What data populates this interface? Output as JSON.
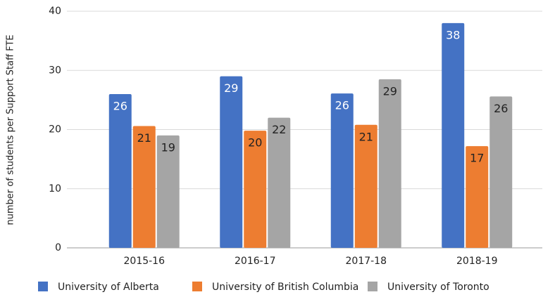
{
  "chart_data": {
    "type": "bar",
    "y_axis_label": "number of students per Support Staff FTE",
    "categories": [
      "2015-16",
      "2016-17",
      "2017-18",
      "2018-19"
    ],
    "series": [
      {
        "name": "University of Alberta",
        "color": "#4472c4",
        "values": [
          26.0,
          29.0,
          26.1,
          38.0
        ],
        "value_labels": [
          "26",
          "29",
          "26",
          "38"
        ]
      },
      {
        "name": "University of British Columbia",
        "color": "#ed7d31",
        "values": [
          20.6,
          19.8,
          20.8,
          17.2
        ],
        "value_labels": [
          "21",
          "20",
          "21",
          "17"
        ]
      },
      {
        "name": "University of Toronto",
        "color": "#a5a5a5",
        "values": [
          19.0,
          22.0,
          28.5,
          25.6
        ],
        "value_labels": [
          "19",
          "22",
          "29",
          "26"
        ]
      }
    ],
    "ylim": [
      0,
      40
    ],
    "yticks": [
      0,
      10,
      20,
      30,
      40
    ],
    "grid": true,
    "legend": "bottom"
  }
}
